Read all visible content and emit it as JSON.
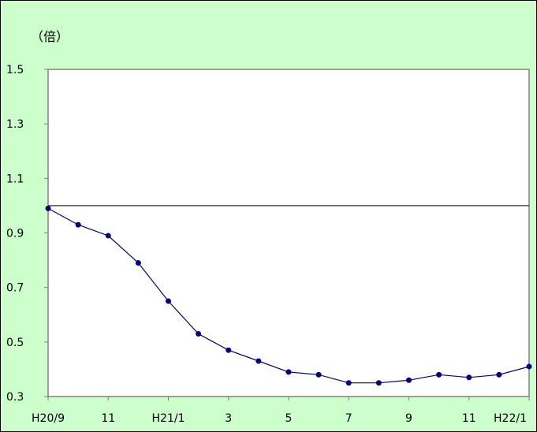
{
  "chart_data": {
    "type": "line",
    "unit_label": "（倍）",
    "x": [
      "H20/9",
      "10",
      "11",
      "12",
      "H21/1",
      "2",
      "3",
      "4",
      "5",
      "6",
      "7",
      "8",
      "9",
      "10",
      "11",
      "12",
      "H22/1"
    ],
    "x_tick_labels": [
      "H20/9",
      "11",
      "H21/1",
      "3",
      "5",
      "7",
      "9",
      "11",
      "H22/1"
    ],
    "series": [
      {
        "values": [
          0.99,
          0.93,
          0.89,
          0.79,
          0.65,
          0.53,
          0.47,
          0.43,
          0.39,
          0.38,
          0.35,
          0.35,
          0.36,
          0.38,
          0.37,
          0.38,
          0.41
        ],
        "color": "#000080"
      }
    ],
    "y_ticks": [
      0.3,
      0.5,
      0.7,
      0.9,
      1.1,
      1.3,
      1.5
    ],
    "ylim": [
      0.3,
      1.5
    ],
    "reference_line": 1.0,
    "grid": false,
    "legend": false,
    "plot_background": "#ffffff",
    "chart_background": "#ccffcc"
  }
}
